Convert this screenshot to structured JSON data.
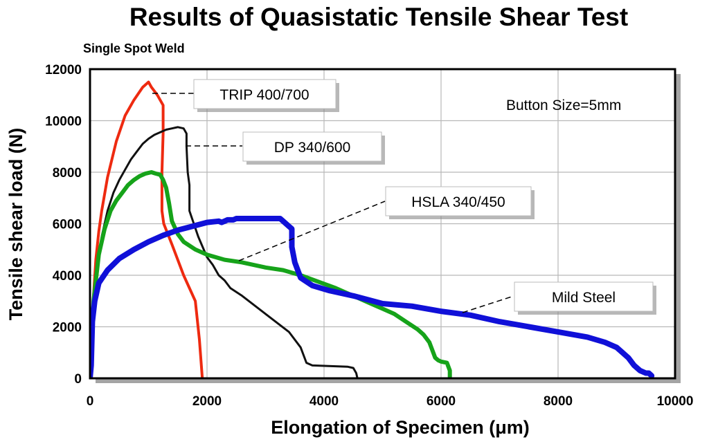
{
  "chart_data": {
    "type": "line",
    "title": "Results of Quasistatic Tensile Shear Test",
    "subtitle": "Single Spot Weld",
    "xlabel": "Elongation of Specimen (μm)",
    "ylabel": "Tensile shear load (N)",
    "xlim": [
      0,
      10000
    ],
    "ylim": [
      0,
      12000
    ],
    "xticks": [
      "0",
      "2000",
      "4000",
      "6000",
      "8000",
      "10000"
    ],
    "yticks": [
      "0",
      "2000",
      "4000",
      "6000",
      "8000",
      "10000",
      "12000"
    ],
    "grid": true,
    "annotation": "Button Size=5mm",
    "series": [
      {
        "name": "TRIP 400/700",
        "color": "#ee2a10",
        "x": [
          0,
          40,
          100,
          150,
          200,
          300,
          450,
          600,
          750,
          900,
          1000,
          1050,
          1150,
          1250,
          1250,
          1230,
          1230,
          1260,
          1400,
          1600,
          1800,
          1870,
          1920
        ],
        "y": [
          0,
          2500,
          4600,
          5700,
          6500,
          7800,
          9200,
          10200,
          10800,
          11300,
          11500,
          11300,
          11000,
          10600,
          9500,
          8000,
          6500,
          6000,
          5200,
          4000,
          3000,
          1500,
          0
        ]
      },
      {
        "name": "DP 340/600",
        "color": "#111111",
        "x": [
          0,
          60,
          120,
          200,
          300,
          400,
          500,
          600,
          700,
          800,
          900,
          1000,
          1100,
          1200,
          1300,
          1400,
          1500,
          1600,
          1650,
          1650,
          1670,
          1700,
          1700,
          1850,
          2000,
          2100,
          2200,
          2300,
          2400,
          2600,
          3000,
          3400,
          3600,
          3700,
          3800,
          4400,
          4500,
          4550,
          4570
        ],
        "y": [
          0,
          2800,
          4400,
          5500,
          6500,
          7200,
          7700,
          8100,
          8500,
          8800,
          9100,
          9300,
          9450,
          9550,
          9650,
          9700,
          9750,
          9700,
          9500,
          9000,
          8000,
          7500,
          6500,
          5500,
          4700,
          4400,
          4000,
          3800,
          3500,
          3200,
          2500,
          1800,
          1200,
          600,
          500,
          450,
          400,
          200,
          0
        ]
      },
      {
        "name": "HSLA 340/450",
        "color": "#16a31a",
        "x": [
          0,
          60,
          150,
          250,
          350,
          450,
          550,
          650,
          750,
          850,
          950,
          1050,
          1120,
          1200,
          1250,
          1300,
          1350,
          1400,
          1500,
          1600,
          1800,
          2000,
          2300,
          2600,
          3000,
          3300,
          3600,
          3900,
          4200,
          4500,
          4800,
          5000,
          5200,
          5400,
          5600,
          5700,
          5800,
          5850,
          5900,
          5950,
          6000,
          6100,
          6150,
          6150
        ],
        "y": [
          0,
          3000,
          4800,
          5800,
          6500,
          6900,
          7200,
          7500,
          7700,
          7850,
          7950,
          8000,
          7950,
          7900,
          7700,
          7400,
          6800,
          6100,
          5600,
          5300,
          5000,
          4800,
          4600,
          4500,
          4300,
          4200,
          4000,
          3750,
          3500,
          3200,
          2900,
          2700,
          2500,
          2200,
          1900,
          1700,
          1400,
          1100,
          800,
          700,
          650,
          600,
          300,
          0
        ]
      },
      {
        "name": "Mild Steel",
        "color": "#1010d8",
        "x": [
          0,
          20,
          40,
          80,
          150,
          300,
          500,
          750,
          1000,
          1250,
          1500,
          1750,
          2000,
          2200,
          2250,
          2300,
          2350,
          2450,
          2500,
          2600,
          2800,
          3000,
          3200,
          3250,
          3300,
          3350,
          3400,
          3450,
          3450,
          3500,
          3600,
          3800,
          4100,
          4500,
          5000,
          5500,
          6000,
          6500,
          7000,
          7500,
          8000,
          8500,
          8800,
          9000,
          9100,
          9200,
          9300,
          9400,
          9500,
          9550,
          9600
        ],
        "y": [
          0,
          500,
          2200,
          3000,
          3700,
          4200,
          4650,
          5000,
          5300,
          5550,
          5750,
          5900,
          6050,
          6100,
          6050,
          6100,
          6150,
          6150,
          6200,
          6200,
          6200,
          6200,
          6200,
          6200,
          6100,
          6000,
          5900,
          5800,
          5100,
          4500,
          3900,
          3600,
          3400,
          3200,
          2900,
          2800,
          2600,
          2450,
          2200,
          2000,
          1800,
          1600,
          1400,
          1200,
          1000,
          800,
          500,
          300,
          200,
          200,
          100
        ]
      }
    ]
  }
}
